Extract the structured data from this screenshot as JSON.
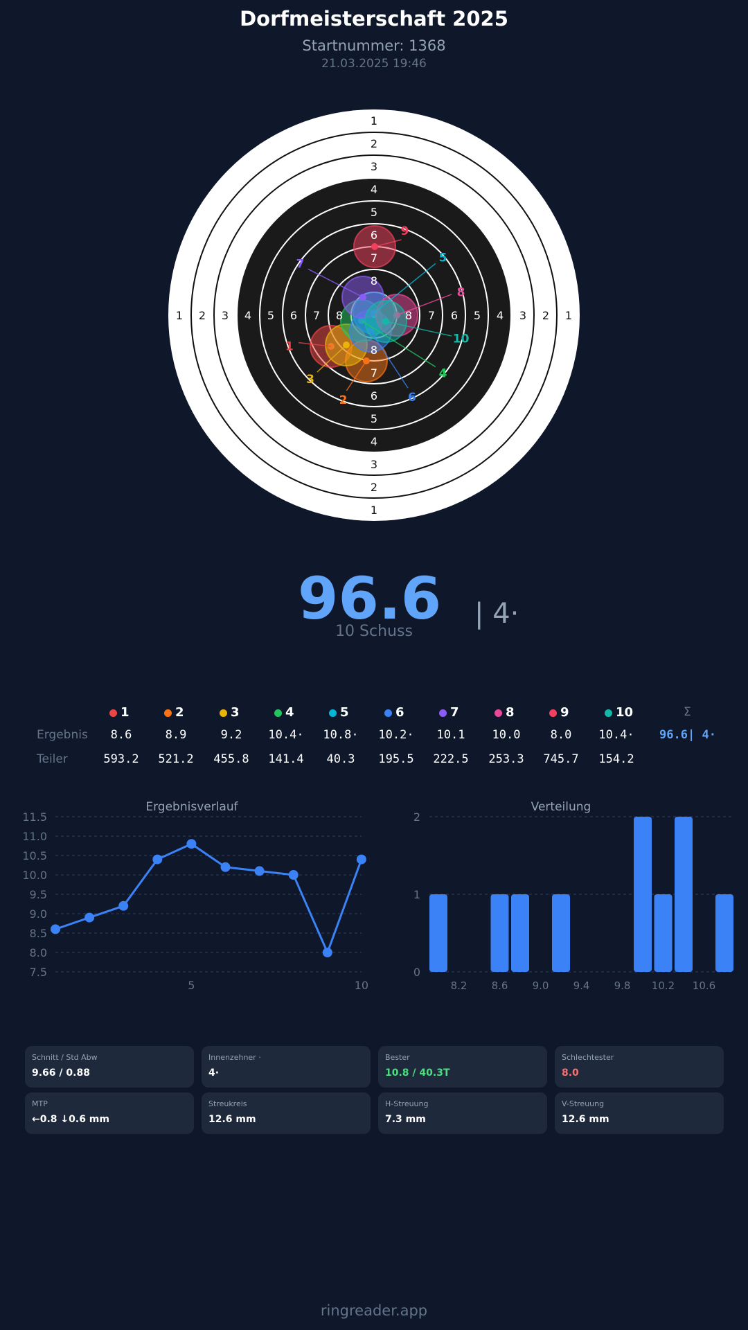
{
  "header": {
    "title": "Dorfmeisterschaft 2025",
    "start_number": "Startnummer: 1368",
    "datetime": "21.03.2025 19:46"
  },
  "target": {
    "ring_labels": [
      "1",
      "2",
      "3",
      "4",
      "5",
      "6",
      "7",
      "8"
    ],
    "shots": [
      {
        "n": "1",
        "color": "#ef4444"
      },
      {
        "n": "2",
        "color": "#f97316"
      },
      {
        "n": "3",
        "color": "#eab308"
      },
      {
        "n": "4",
        "color": "#22c55e"
      },
      {
        "n": "5",
        "color": "#06b6d4"
      },
      {
        "n": "6",
        "color": "#3b82f6"
      },
      {
        "n": "7",
        "color": "#8b5cf6"
      },
      {
        "n": "8",
        "color": "#ec4899"
      },
      {
        "n": "9",
        "color": "#f43f5e"
      },
      {
        "n": "10",
        "color": "#14b8a6"
      }
    ]
  },
  "summary": {
    "total": "96.6",
    "inner_tens": "| 4·",
    "shots": "10 Schuss"
  },
  "table": {
    "sum_symbol": "Σ",
    "result_label": "Ergebnis",
    "divider_label": "Teiler",
    "results": [
      "8.6",
      "8.9",
      "9.2",
      "10.4·",
      "10.8·",
      "10.2·",
      "10.1",
      "10.0",
      "8.0",
      "10.4·"
    ],
    "total": "96.6| 4·",
    "dividers": [
      "593.2",
      "521.2",
      "455.8",
      "141.4",
      "40.3",
      "195.5",
      "222.5",
      "253.3",
      "745.7",
      "154.2"
    ]
  },
  "chart_data": [
    {
      "type": "line",
      "title": "Ergebnisverlauf",
      "x": [
        1,
        2,
        3,
        4,
        5,
        6,
        7,
        8,
        9,
        10
      ],
      "values": [
        8.6,
        8.9,
        9.2,
        10.4,
        10.8,
        10.2,
        10.1,
        10.0,
        8.0,
        10.4
      ],
      "ylim": [
        7.5,
        11.5
      ],
      "yticks": [
        "11.5",
        "11.0",
        "10.5",
        "10.0",
        "9.5",
        "9.0",
        "8.5",
        "8.0",
        "7.5"
      ],
      "xticks": [
        "5",
        "10"
      ],
      "grid": true,
      "color": "#3b82f6"
    },
    {
      "type": "bar",
      "title": "Verteilung",
      "categories": [
        8.0,
        8.6,
        8.8,
        9.2,
        10.0,
        10.2,
        10.4,
        10.8
      ],
      "values": [
        1,
        1,
        1,
        1,
        2,
        1,
        2,
        1
      ],
      "ylim": [
        0,
        2
      ],
      "yticks": [
        "2",
        "1",
        "0"
      ],
      "xticks": [
        "8.2",
        "8.6",
        "9.0",
        "9.4",
        "9.8",
        "10.2",
        "10.6"
      ],
      "grid": true,
      "color": "#3b82f6"
    }
  ],
  "stats": [
    {
      "label": "Schnitt / Std Abw",
      "value": "9.66 / 0.88",
      "color": "#ffffff"
    },
    {
      "label": "Innenzehner ·",
      "value": "4·",
      "color": "#ffffff"
    },
    {
      "label": "Bester",
      "value": "10.8 / 40.3T",
      "color": "#4ade80"
    },
    {
      "label": "Schlechtester",
      "value": "8.0",
      "color": "#f87171"
    },
    {
      "label": "MTP",
      "value": "←0.8 ↓0.6 mm",
      "color": "#ffffff"
    },
    {
      "label": "Streukreis",
      "value": "12.6 mm",
      "color": "#ffffff"
    },
    {
      "label": "H-Streuung",
      "value": "7.3 mm",
      "color": "#ffffff"
    },
    {
      "label": "V-Streuung",
      "value": "12.6 mm",
      "color": "#ffffff"
    }
  ],
  "footer": "ringreader.app"
}
